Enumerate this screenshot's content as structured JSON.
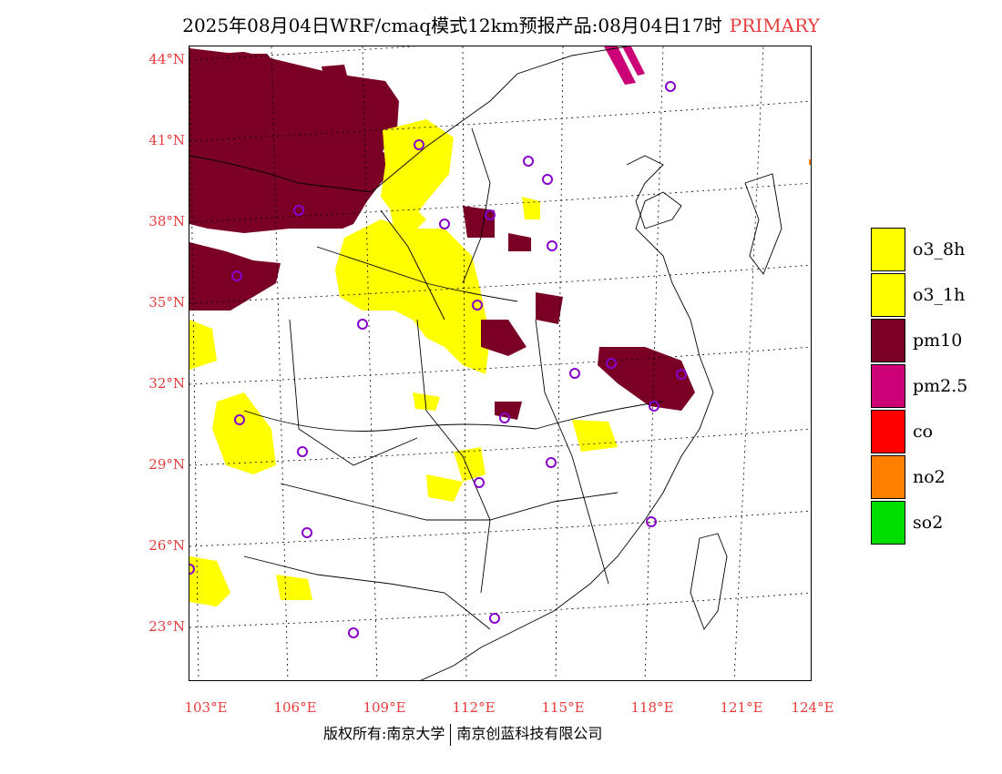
{
  "title": {
    "main": "2025年08月04日WRF/cmaq模式12km预报产品:08月04日17时",
    "tag": "PRIMARY"
  },
  "colors": {
    "o3_8h": "#ffff00",
    "o3_1h": "#ffff00",
    "pm10": "#7a0026",
    "pm2_5": "#cc0077",
    "co": "#ff0000",
    "no2": "#ff8000",
    "so2": "#00dd00",
    "station": "#8800cc",
    "axis_label": "#e83c3c"
  },
  "lat_labels": [
    "44°N",
    "41°N",
    "38°N",
    "35°N",
    "32°N",
    "29°N",
    "26°N",
    "23°N"
  ],
  "lon_labels": [
    "103°E",
    "106°E",
    "109°E",
    "112°E",
    "115°E",
    "118°E",
    "121°E",
    "124°E"
  ],
  "legend": [
    {
      "label": "o3_8h",
      "color": "#ffff00"
    },
    {
      "label": "o3_1h",
      "color": "#ffff00"
    },
    {
      "label": "pm10",
      "color": "#7a0026"
    },
    {
      "label": "pm2.5",
      "color": "#cc0077"
    },
    {
      "label": "co",
      "color": "#ff0000"
    },
    {
      "label": "no2",
      "color": "#ff8000"
    },
    {
      "label": "so2",
      "color": "#00dd00"
    }
  ],
  "footer": {
    "left": "版权所有:南京大学",
    "right": "南京创蓝科技有限公司"
  }
}
